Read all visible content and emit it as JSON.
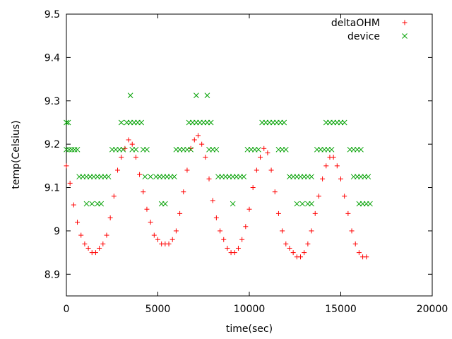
{
  "chart_data": {
    "type": "scatter",
    "xlabel": "time(sec)",
    "ylabel": "temp(Celsius)",
    "xlim": [
      0,
      20000
    ],
    "ylim": [
      8.85,
      9.5
    ],
    "xticks": [
      0,
      5000,
      10000,
      15000,
      20000
    ],
    "yticks": [
      8.9,
      9.0,
      9.1,
      9.2,
      9.3,
      9.4,
      9.5
    ],
    "xtick_labels": [
      "0",
      "5000",
      "10000",
      "15000",
      "20000"
    ],
    "ytick_labels": [
      "8.9",
      "9",
      "9.1",
      "9.2",
      "9.3",
      "9.4",
      "9.5"
    ],
    "grid": false,
    "legend_position": "top-right",
    "series": [
      {
        "name": "deltaOHM",
        "marker": "plus",
        "color": "#ff0000",
        "points": [
          [
            0,
            9.15
          ],
          [
            200,
            9.11
          ],
          [
            400,
            9.06
          ],
          [
            600,
            9.02
          ],
          [
            800,
            8.99
          ],
          [
            1000,
            8.97
          ],
          [
            1200,
            8.96
          ],
          [
            1400,
            8.95
          ],
          [
            1600,
            8.95
          ],
          [
            1800,
            8.96
          ],
          [
            2000,
            8.97
          ],
          [
            2200,
            8.99
          ],
          [
            2400,
            9.03
          ],
          [
            2600,
            9.08
          ],
          [
            2800,
            9.14
          ],
          [
            3000,
            9.17
          ],
          [
            3200,
            9.19
          ],
          [
            3400,
            9.21
          ],
          [
            3600,
            9.2
          ],
          [
            3800,
            9.17
          ],
          [
            4000,
            9.13
          ],
          [
            4200,
            9.09
          ],
          [
            4400,
            9.05
          ],
          [
            4600,
            9.02
          ],
          [
            4800,
            8.99
          ],
          [
            5000,
            8.98
          ],
          [
            5200,
            8.97
          ],
          [
            5400,
            8.97
          ],
          [
            5600,
            8.97
          ],
          [
            5800,
            8.98
          ],
          [
            6000,
            9.0
          ],
          [
            6200,
            9.04
          ],
          [
            6400,
            9.09
          ],
          [
            6600,
            9.14
          ],
          [
            6800,
            9.19
          ],
          [
            7000,
            9.21
          ],
          [
            7200,
            9.22
          ],
          [
            7400,
            9.2
          ],
          [
            7600,
            9.17
          ],
          [
            7800,
            9.12
          ],
          [
            8000,
            9.07
          ],
          [
            8200,
            9.03
          ],
          [
            8400,
            9.0
          ],
          [
            8600,
            8.98
          ],
          [
            8800,
            8.96
          ],
          [
            9000,
            8.95
          ],
          [
            9200,
            8.95
          ],
          [
            9400,
            8.96
          ],
          [
            9600,
            8.98
          ],
          [
            9800,
            9.01
          ],
          [
            10000,
            9.05
          ],
          [
            10200,
            9.1
          ],
          [
            10400,
            9.14
          ],
          [
            10600,
            9.17
          ],
          [
            10800,
            9.19
          ],
          [
            11000,
            9.18
          ],
          [
            11200,
            9.14
          ],
          [
            11400,
            9.09
          ],
          [
            11600,
            9.04
          ],
          [
            11800,
            9.0
          ],
          [
            12000,
            8.97
          ],
          [
            12200,
            8.96
          ],
          [
            12400,
            8.95
          ],
          [
            12600,
            8.94
          ],
          [
            12800,
            8.94
          ],
          [
            13000,
            8.95
          ],
          [
            13200,
            8.97
          ],
          [
            13400,
            9.0
          ],
          [
            13600,
            9.04
          ],
          [
            13800,
            9.08
          ],
          [
            14000,
            9.12
          ],
          [
            14200,
            9.15
          ],
          [
            14400,
            9.17
          ],
          [
            14600,
            9.17
          ],
          [
            14800,
            9.15
          ],
          [
            15000,
            9.12
          ],
          [
            15200,
            9.08
          ],
          [
            15400,
            9.04
          ],
          [
            15600,
            9.0
          ],
          [
            15800,
            8.97
          ],
          [
            16000,
            8.95
          ],
          [
            16200,
            8.94
          ],
          [
            16400,
            8.94
          ]
        ]
      },
      {
        "name": "device",
        "marker": "cross",
        "color": "#00a000",
        "points": [
          [
            0,
            9.25
          ],
          [
            100,
            9.25
          ],
          [
            0,
            9.1875
          ],
          [
            150,
            9.1875
          ],
          [
            300,
            9.1875
          ],
          [
            450,
            9.1875
          ],
          [
            600,
            9.1875
          ],
          [
            700,
            9.125
          ],
          [
            900,
            9.125
          ],
          [
            1100,
            9.125
          ],
          [
            1300,
            9.125
          ],
          [
            1500,
            9.125
          ],
          [
            1700,
            9.125
          ],
          [
            1900,
            9.125
          ],
          [
            2100,
            9.125
          ],
          [
            2300,
            9.125
          ],
          [
            1100,
            9.0625
          ],
          [
            1400,
            9.0625
          ],
          [
            1700,
            9.0625
          ],
          [
            1900,
            9.0625
          ],
          [
            2500,
            9.1875
          ],
          [
            2700,
            9.1875
          ],
          [
            2900,
            9.1875
          ],
          [
            3100,
            9.1875
          ],
          [
            3000,
            9.25
          ],
          [
            3300,
            9.25
          ],
          [
            3500,
            9.25
          ],
          [
            3700,
            9.25
          ],
          [
            3900,
            9.25
          ],
          [
            4100,
            9.25
          ],
          [
            3500,
            9.3125
          ],
          [
            3600,
            9.1875
          ],
          [
            3800,
            9.1875
          ],
          [
            4200,
            9.1875
          ],
          [
            4400,
            9.1875
          ],
          [
            4300,
            9.125
          ],
          [
            4600,
            9.125
          ],
          [
            4900,
            9.125
          ],
          [
            5100,
            9.125
          ],
          [
            5300,
            9.125
          ],
          [
            5500,
            9.125
          ],
          [
            5700,
            9.125
          ],
          [
            5900,
            9.125
          ],
          [
            5200,
            9.0625
          ],
          [
            5400,
            9.0625
          ],
          [
            6000,
            9.1875
          ],
          [
            6200,
            9.1875
          ],
          [
            6400,
            9.1875
          ],
          [
            6600,
            9.1875
          ],
          [
            6800,
            9.1875
          ],
          [
            6700,
            9.25
          ],
          [
            6900,
            9.25
          ],
          [
            7100,
            9.25
          ],
          [
            7300,
            9.25
          ],
          [
            7500,
            9.25
          ],
          [
            7700,
            9.25
          ],
          [
            7900,
            9.25
          ],
          [
            7100,
            9.3125
          ],
          [
            7700,
            9.3125
          ],
          [
            7800,
            9.1875
          ],
          [
            8000,
            9.1875
          ],
          [
            8200,
            9.1875
          ],
          [
            8300,
            9.125
          ],
          [
            8500,
            9.125
          ],
          [
            8700,
            9.125
          ],
          [
            8900,
            9.125
          ],
          [
            9100,
            9.125
          ],
          [
            9300,
            9.125
          ],
          [
            9500,
            9.125
          ],
          [
            9700,
            9.125
          ],
          [
            9100,
            9.0625
          ],
          [
            9900,
            9.1875
          ],
          [
            10100,
            9.1875
          ],
          [
            10300,
            9.1875
          ],
          [
            10500,
            9.1875
          ],
          [
            10700,
            9.25
          ],
          [
            10900,
            9.25
          ],
          [
            11100,
            9.25
          ],
          [
            11300,
            9.25
          ],
          [
            11500,
            9.25
          ],
          [
            11700,
            9.25
          ],
          [
            11900,
            9.25
          ],
          [
            11600,
            9.1875
          ],
          [
            11800,
            9.1875
          ],
          [
            12000,
            9.1875
          ],
          [
            12200,
            9.125
          ],
          [
            12400,
            9.125
          ],
          [
            12600,
            9.125
          ],
          [
            12800,
            9.125
          ],
          [
            13000,
            9.125
          ],
          [
            13200,
            9.125
          ],
          [
            13400,
            9.125
          ],
          [
            12600,
            9.0625
          ],
          [
            12900,
            9.0625
          ],
          [
            13200,
            9.0625
          ],
          [
            13400,
            9.0625
          ],
          [
            13700,
            9.1875
          ],
          [
            13900,
            9.1875
          ],
          [
            14100,
            9.1875
          ],
          [
            14300,
            9.1875
          ],
          [
            14500,
            9.1875
          ],
          [
            14200,
            9.25
          ],
          [
            14400,
            9.25
          ],
          [
            14600,
            9.25
          ],
          [
            14800,
            9.25
          ],
          [
            15000,
            9.25
          ],
          [
            15200,
            9.25
          ],
          [
            15500,
            9.1875
          ],
          [
            15700,
            9.1875
          ],
          [
            15900,
            9.1875
          ],
          [
            16100,
            9.1875
          ],
          [
            15700,
            9.125
          ],
          [
            15900,
            9.125
          ],
          [
            16100,
            9.125
          ],
          [
            16300,
            9.125
          ],
          [
            16500,
            9.125
          ],
          [
            16000,
            9.0625
          ],
          [
            16200,
            9.0625
          ],
          [
            16400,
            9.0625
          ],
          [
            16600,
            9.0625
          ]
        ]
      }
    ]
  }
}
